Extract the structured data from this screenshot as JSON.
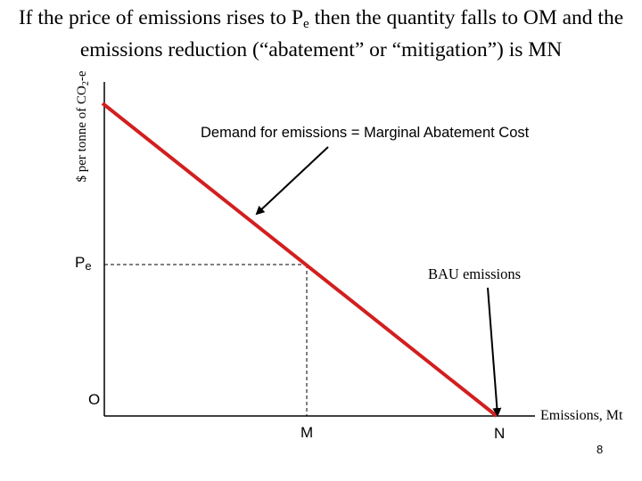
{
  "slide": {
    "title_part1": "If the price of emissions rises to P",
    "title_sub": "e",
    "title_part2": " then the quantity falls to OM and the",
    "title_line2": "emissions reduction (“abatement” or “mitigation”) is MN",
    "page_number": "8"
  },
  "diagram": {
    "y_axis_label_part1": "$ per tonne of CO",
    "y_axis_label_sub": "2",
    "y_axis_label_part2": "-e",
    "x_axis_label": "Emissions, Mt",
    "origin_label": "O",
    "price_label_main": "P",
    "price_label_sub": "e",
    "m_label": "M",
    "n_label": "N",
    "demand_label": "Demand for emissions = Marginal Abatement Cost",
    "bau_label": "BAU emissions",
    "colors": {
      "demand_line": "#d21f1f",
      "axes": "#000000",
      "guides": "#000000"
    }
  }
}
